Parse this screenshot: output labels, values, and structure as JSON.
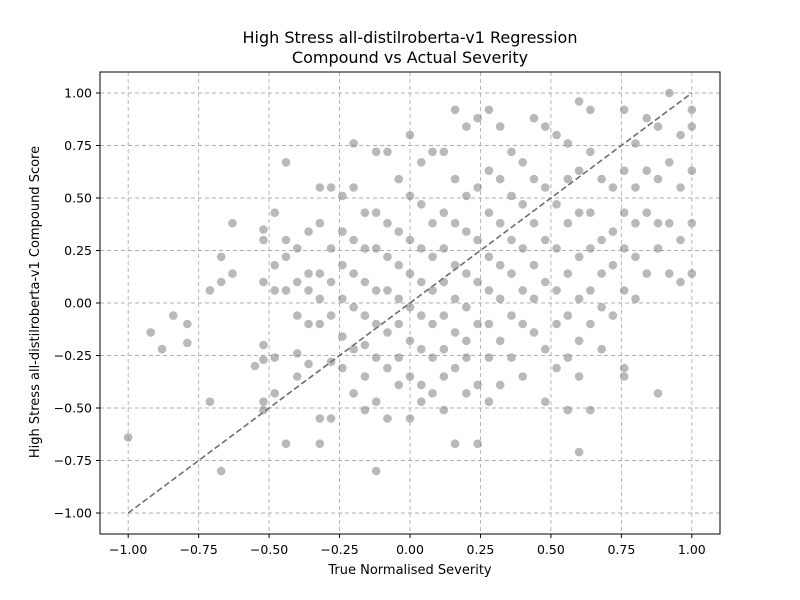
{
  "chart_data": {
    "type": "scatter",
    "title_lines": [
      "High Stress all-distilroberta-v1 Regression",
      "Compound vs Actual Severity"
    ],
    "xlabel": "True Normalised Severity",
    "ylabel": "High Stress all-distilroberta-v1 Compound Score",
    "xlim": [
      -1.1,
      1.1
    ],
    "ylim": [
      -1.1,
      1.1
    ],
    "xticks": [
      -1.0,
      -0.75,
      -0.5,
      -0.25,
      0.0,
      0.25,
      0.5,
      0.75,
      1.0
    ],
    "yticks": [
      -1.0,
      -0.75,
      -0.5,
      -0.25,
      0.0,
      0.25,
      0.5,
      0.75,
      1.0
    ],
    "xtick_labels": [
      "−1.00",
      "−0.75",
      "−0.50",
      "−0.25",
      "0.00",
      "0.25",
      "0.50",
      "0.75",
      "1.00"
    ],
    "ytick_labels": [
      "−1.00",
      "−0.75",
      "−0.50",
      "−0.25",
      "0.00",
      "0.25",
      "0.50",
      "0.75",
      "1.00"
    ],
    "grid": true,
    "point_color": "#808080",
    "reference_line": {
      "style": "dashed",
      "color": "#6e6e6e",
      "from": [
        -1.0,
        -1.0
      ],
      "to": [
        1.0,
        1.0
      ]
    },
    "series": [
      {
        "points": [
          [
            -1.0,
            -0.64
          ],
          [
            -0.92,
            -0.14
          ],
          [
            -0.88,
            -0.22
          ],
          [
            -0.84,
            -0.06
          ],
          [
            -0.79,
            -0.1
          ],
          [
            -0.79,
            -0.19
          ],
          [
            -0.71,
            0.06
          ],
          [
            -0.71,
            -0.47
          ],
          [
            -0.67,
            0.1
          ],
          [
            -0.67,
            0.22
          ],
          [
            -0.67,
            -0.8
          ],
          [
            -0.63,
            0.14
          ],
          [
            -0.63,
            0.38
          ],
          [
            -0.55,
            -0.3
          ],
          [
            -0.52,
            0.3
          ],
          [
            -0.52,
            0.35
          ],
          [
            -0.52,
            0.1
          ],
          [
            -0.52,
            -0.2
          ],
          [
            -0.52,
            -0.27
          ],
          [
            -0.52,
            -0.47
          ],
          [
            -0.52,
            -0.51
          ],
          [
            -0.48,
            0.43
          ],
          [
            -0.48,
            0.18
          ],
          [
            -0.48,
            0.06
          ],
          [
            -0.48,
            -0.26
          ],
          [
            -0.48,
            -0.43
          ],
          [
            -0.44,
            0.67
          ],
          [
            -0.44,
            0.3
          ],
          [
            -0.44,
            0.22
          ],
          [
            -0.44,
            0.06
          ],
          [
            -0.44,
            -0.67
          ],
          [
            -0.4,
            0.26
          ],
          [
            -0.4,
            0.1
          ],
          [
            -0.4,
            -0.06
          ],
          [
            -0.4,
            -0.24
          ],
          [
            -0.4,
            -0.35
          ],
          [
            -0.36,
            0.34
          ],
          [
            -0.36,
            0.14
          ],
          [
            -0.36,
            0.06
          ],
          [
            -0.36,
            -0.1
          ],
          [
            -0.36,
            -0.29
          ],
          [
            -0.32,
            0.55
          ],
          [
            -0.32,
            0.38
          ],
          [
            -0.32,
            0.14
          ],
          [
            -0.32,
            0.02
          ],
          [
            -0.32,
            -0.1
          ],
          [
            -0.32,
            -0.55
          ],
          [
            -0.32,
            -0.67
          ],
          [
            -0.28,
            0.55
          ],
          [
            -0.28,
            0.26
          ],
          [
            -0.28,
            0.1
          ],
          [
            -0.28,
            -0.06
          ],
          [
            -0.28,
            -0.28
          ],
          [
            -0.28,
            -0.55
          ],
          [
            -0.24,
            0.51
          ],
          [
            -0.24,
            0.34
          ],
          [
            -0.24,
            0.18
          ],
          [
            -0.24,
            0.02
          ],
          [
            -0.24,
            -0.16
          ],
          [
            -0.24,
            -0.31
          ],
          [
            -0.2,
            0.76
          ],
          [
            -0.2,
            0.55
          ],
          [
            -0.2,
            0.3
          ],
          [
            -0.2,
            0.14
          ],
          [
            -0.2,
            -0.02
          ],
          [
            -0.2,
            -0.22
          ],
          [
            -0.2,
            -0.43
          ],
          [
            -0.16,
            0.43
          ],
          [
            -0.16,
            0.26
          ],
          [
            -0.16,
            0.1
          ],
          [
            -0.16,
            -0.06
          ],
          [
            -0.16,
            -0.2
          ],
          [
            -0.16,
            -0.35
          ],
          [
            -0.16,
            -0.51
          ],
          [
            -0.12,
            0.72
          ],
          [
            -0.12,
            0.43
          ],
          [
            -0.12,
            0.26
          ],
          [
            -0.12,
            0.06
          ],
          [
            -0.12,
            -0.1
          ],
          [
            -0.12,
            -0.26
          ],
          [
            -0.12,
            -0.47
          ],
          [
            -0.12,
            -0.8
          ],
          [
            -0.08,
            0.72
          ],
          [
            -0.08,
            0.38
          ],
          [
            -0.08,
            0.22
          ],
          [
            -0.08,
            0.06
          ],
          [
            -0.08,
            -0.14
          ],
          [
            -0.08,
            -0.31
          ],
          [
            -0.08,
            -0.55
          ],
          [
            -0.04,
            0.59
          ],
          [
            -0.04,
            0.34
          ],
          [
            -0.04,
            0.18
          ],
          [
            -0.04,
            0.02
          ],
          [
            -0.04,
            -0.1
          ],
          [
            -0.04,
            -0.26
          ],
          [
            -0.04,
            -0.39
          ],
          [
            0.0,
            0.8
          ],
          [
            0.0,
            0.51
          ],
          [
            0.0,
            0.3
          ],
          [
            0.0,
            0.14
          ],
          [
            0.0,
            -0.02
          ],
          [
            0.0,
            -0.18
          ],
          [
            0.0,
            -0.35
          ],
          [
            0.0,
            -0.55
          ],
          [
            0.04,
            0.67
          ],
          [
            0.04,
            0.47
          ],
          [
            0.04,
            0.26
          ],
          [
            0.04,
            0.1
          ],
          [
            0.04,
            -0.06
          ],
          [
            0.04,
            -0.22
          ],
          [
            0.04,
            -0.39
          ],
          [
            0.04,
            -0.47
          ],
          [
            0.08,
            0.72
          ],
          [
            0.08,
            0.38
          ],
          [
            0.08,
            0.22
          ],
          [
            0.08,
            0.06
          ],
          [
            0.08,
            -0.1
          ],
          [
            0.08,
            -0.26
          ],
          [
            0.08,
            -0.43
          ],
          [
            0.12,
            0.72
          ],
          [
            0.12,
            0.43
          ],
          [
            0.12,
            0.26
          ],
          [
            0.12,
            0.1
          ],
          [
            0.12,
            -0.06
          ],
          [
            0.12,
            -0.22
          ],
          [
            0.12,
            -0.35
          ],
          [
            0.12,
            -0.51
          ],
          [
            0.16,
            0.92
          ],
          [
            0.16,
            0.59
          ],
          [
            0.16,
            0.38
          ],
          [
            0.16,
            0.18
          ],
          [
            0.16,
            0.02
          ],
          [
            0.16,
            -0.14
          ],
          [
            0.16,
            -0.31
          ],
          [
            0.16,
            -0.67
          ],
          [
            0.2,
            0.84
          ],
          [
            0.2,
            0.51
          ],
          [
            0.2,
            0.34
          ],
          [
            0.2,
            0.14
          ],
          [
            0.2,
            -0.02
          ],
          [
            0.2,
            -0.18
          ],
          [
            0.2,
            -0.26
          ],
          [
            0.2,
            -0.43
          ],
          [
            0.24,
            0.88
          ],
          [
            0.24,
            0.55
          ],
          [
            0.24,
            0.3
          ],
          [
            0.24,
            0.1
          ],
          [
            0.24,
            -0.1
          ],
          [
            0.24,
            -0.39
          ],
          [
            0.24,
            -0.67
          ],
          [
            0.28,
            0.92
          ],
          [
            0.28,
            0.63
          ],
          [
            0.28,
            0.43
          ],
          [
            0.28,
            0.22
          ],
          [
            0.28,
            0.06
          ],
          [
            0.28,
            -0.1
          ],
          [
            0.28,
            -0.26
          ],
          [
            0.28,
            -0.47
          ],
          [
            0.32,
            0.84
          ],
          [
            0.32,
            0.59
          ],
          [
            0.32,
            0.38
          ],
          [
            0.32,
            0.18
          ],
          [
            0.32,
            0.02
          ],
          [
            0.32,
            -0.18
          ],
          [
            0.32,
            -0.39
          ],
          [
            0.36,
            0.72
          ],
          [
            0.36,
            0.51
          ],
          [
            0.36,
            0.3
          ],
          [
            0.36,
            0.14
          ],
          [
            0.36,
            -0.06
          ],
          [
            0.36,
            -0.26
          ],
          [
            0.4,
            0.67
          ],
          [
            0.4,
            0.47
          ],
          [
            0.4,
            0.26
          ],
          [
            0.4,
            0.06
          ],
          [
            0.4,
            -0.1
          ],
          [
            0.4,
            -0.35
          ],
          [
            0.44,
            0.88
          ],
          [
            0.44,
            0.59
          ],
          [
            0.44,
            0.38
          ],
          [
            0.44,
            0.18
          ],
          [
            0.44,
            0.02
          ],
          [
            0.44,
            -0.14
          ],
          [
            0.48,
            0.84
          ],
          [
            0.48,
            0.55
          ],
          [
            0.48,
            0.3
          ],
          [
            0.48,
            0.1
          ],
          [
            0.48,
            -0.22
          ],
          [
            0.48,
            -0.47
          ],
          [
            0.52,
            0.8
          ],
          [
            0.52,
            0.47
          ],
          [
            0.52,
            0.26
          ],
          [
            0.52,
            0.06
          ],
          [
            0.52,
            -0.1
          ],
          [
            0.52,
            -0.31
          ],
          [
            0.56,
            0.76
          ],
          [
            0.56,
            0.59
          ],
          [
            0.56,
            0.38
          ],
          [
            0.56,
            0.14
          ],
          [
            0.56,
            -0.06
          ],
          [
            0.56,
            -0.26
          ],
          [
            0.56,
            -0.51
          ],
          [
            0.6,
            0.96
          ],
          [
            0.6,
            0.63
          ],
          [
            0.6,
            0.43
          ],
          [
            0.6,
            0.22
          ],
          [
            0.6,
            0.02
          ],
          [
            0.6,
            -0.18
          ],
          [
            0.6,
            -0.35
          ],
          [
            0.6,
            -0.71
          ],
          [
            0.64,
            0.92
          ],
          [
            0.64,
            0.72
          ],
          [
            0.64,
            0.43
          ],
          [
            0.64,
            0.26
          ],
          [
            0.64,
            0.06
          ],
          [
            0.64,
            -0.1
          ],
          [
            0.64,
            -0.51
          ],
          [
            0.68,
            0.59
          ],
          [
            0.68,
            0.3
          ],
          [
            0.68,
            0.14
          ],
          [
            0.68,
            -0.02
          ],
          [
            0.68,
            -0.22
          ],
          [
            0.72,
            0.55
          ],
          [
            0.72,
            0.34
          ],
          [
            0.72,
            0.18
          ],
          [
            0.72,
            -0.06
          ],
          [
            0.76,
            0.92
          ],
          [
            0.76,
            0.63
          ],
          [
            0.76,
            0.43
          ],
          [
            0.76,
            0.26
          ],
          [
            0.76,
            0.06
          ],
          [
            0.76,
            -0.31
          ],
          [
            0.76,
            -0.35
          ],
          [
            0.8,
            0.76
          ],
          [
            0.8,
            0.55
          ],
          [
            0.8,
            0.38
          ],
          [
            0.8,
            0.22
          ],
          [
            0.8,
            0.02
          ],
          [
            0.84,
            0.88
          ],
          [
            0.84,
            0.63
          ],
          [
            0.84,
            0.43
          ],
          [
            0.84,
            0.14
          ],
          [
            0.88,
            0.84
          ],
          [
            0.88,
            0.59
          ],
          [
            0.88,
            0.38
          ],
          [
            0.88,
            0.26
          ],
          [
            0.88,
            -0.43
          ],
          [
            0.92,
            1.0
          ],
          [
            0.92,
            0.67
          ],
          [
            0.92,
            0.38
          ],
          [
            0.92,
            0.14
          ],
          [
            0.96,
            0.8
          ],
          [
            0.96,
            0.55
          ],
          [
            0.96,
            0.3
          ],
          [
            0.96,
            0.1
          ],
          [
            1.0,
            0.92
          ],
          [
            1.0,
            0.84
          ],
          [
            1.0,
            0.63
          ],
          [
            1.0,
            0.38
          ],
          [
            1.0,
            0.14
          ]
        ]
      }
    ]
  }
}
